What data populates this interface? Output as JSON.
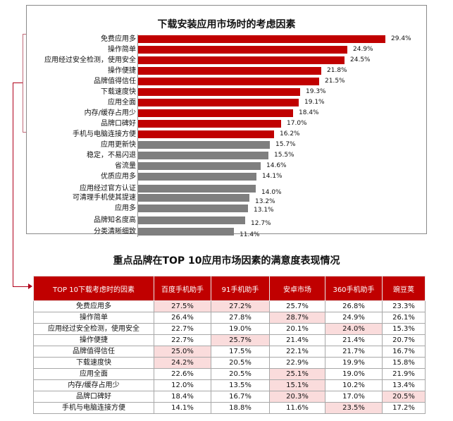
{
  "chart_data": [
    {
      "type": "bar",
      "orientation": "horizontal",
      "title": "下载安装应用市场时的考虑因素",
      "xlabel": "",
      "ylabel": "",
      "grid": false,
      "xlim": [
        0,
        30
      ],
      "categories": [
        "免费应用多",
        "操作简单",
        "应用经过安全检测，使用安全",
        "操作便捷",
        "品牌值得信任",
        "下载速度快",
        "应用全面",
        "内存/缓存占用少",
        "品牌口碑好",
        "手机与电脑连接方便",
        "应用更新快",
        "稳定，不易闪退",
        "省流量",
        "优质应用多",
        "应用经过官方认证",
        "可清理手机使其提速",
        "应用多",
        "品牌知名度高",
        "分类清晰细致"
      ],
      "values": [
        29.4,
        24.9,
        24.5,
        21.8,
        21.5,
        19.3,
        19.1,
        18.4,
        17.0,
        16.2,
        15.7,
        15.5,
        14.6,
        14.1,
        14.0,
        13.2,
        13.1,
        12.7,
        11.4
      ],
      "value_labels": [
        "29.4%",
        "24.9%",
        "24.5%",
        "21.8%",
        "21.5%",
        "19.3%",
        "19.1%",
        "18.4%",
        "17.0%",
        "16.2%",
        "15.7%",
        "15.5%",
        "14.6%",
        "14.1%",
        "14.0%",
        "13.2%",
        "13.1%",
        "12.7%",
        "11.4%"
      ],
      "highlight_top_n": 10,
      "colors": {
        "top10": "#c00000",
        "rest": "#7f7f7f"
      }
    },
    {
      "type": "table",
      "title": "重点品牌在TOP 10应用市场因素的满意度表现情况",
      "columns": [
        "TOP 10下载考虑时的因素",
        "百度手机助手",
        "91手机助手",
        "安卓市场",
        "360手机助手",
        "豌豆荚"
      ],
      "rows": [
        [
          "免费应用多",
          "27.5%",
          "27.2%",
          "25.7%",
          "26.8%",
          "23.3%"
        ],
        [
          "操作简单",
          "26.4%",
          "27.8%",
          "28.7%",
          "24.9%",
          "26.1%"
        ],
        [
          "应用经过安全检测，使用安全",
          "22.7%",
          "19.0%",
          "20.1%",
          "24.0%",
          "15.3%"
        ],
        [
          "操作便捷",
          "22.7%",
          "25.7%",
          "21.4%",
          "21.4%",
          "20.7%"
        ],
        [
          "品牌值得信任",
          "25.0%",
          "17.5%",
          "22.1%",
          "21.7%",
          "16.7%"
        ],
        [
          "下载速度快",
          "24.2%",
          "20.5%",
          "22.9%",
          "19.9%",
          "15.8%"
        ],
        [
          "应用全面",
          "22.6%",
          "20.5%",
          "25.1%",
          "19.0%",
          "21.9%"
        ],
        [
          "内存/缓存占用少",
          "12.0%",
          "13.5%",
          "15.1%",
          "10.2%",
          "13.4%"
        ],
        [
          "品牌口碑好",
          "18.4%",
          "16.7%",
          "20.3%",
          "17.0%",
          "20.5%"
        ],
        [
          "手机与电脑连接方便",
          "14.1%",
          "18.8%",
          "11.6%",
          "23.5%",
          "17.2%"
        ]
      ],
      "highlighted_cells": [
        [
          0,
          1
        ],
        [
          0,
          2
        ],
        [
          1,
          3
        ],
        [
          2,
          4
        ],
        [
          3,
          2
        ],
        [
          4,
          1
        ],
        [
          5,
          1
        ],
        [
          6,
          3
        ],
        [
          7,
          3
        ],
        [
          8,
          3
        ],
        [
          8,
          5
        ],
        [
          9,
          4
        ]
      ],
      "colors": {
        "header_bg": "#c00000",
        "header_text": "#ffffff",
        "highlight_bg": "#fadcdc"
      }
    }
  ],
  "bar_chart": {
    "title": "下载安装应用市场时的考虑因素",
    "rows": [
      {
        "label": "免费应用多",
        "value": 29.4,
        "text": "29.4%"
      },
      {
        "label": "操作简单",
        "value": 24.9,
        "text": "24.9%"
      },
      {
        "label": "应用经过安全检测，使用安全",
        "value": 24.5,
        "text": "24.5%"
      },
      {
        "label": "操作便捷",
        "value": 21.8,
        "text": "21.8%"
      },
      {
        "label": "品牌值得信任",
        "value": 21.5,
        "text": "21.5%"
      },
      {
        "label": "下载速度快",
        "value": 19.3,
        "text": "19.3%"
      },
      {
        "label": "应用全面",
        "value": 19.1,
        "text": "19.1%"
      },
      {
        "label": "内存/缓存占用少",
        "value": 18.4,
        "text": "18.4%"
      },
      {
        "label": "品牌口碑好",
        "value": 17.0,
        "text": "17.0%"
      },
      {
        "label": "手机与电脑连接方便",
        "value": 16.2,
        "text": "16.2%"
      },
      {
        "label": "应用更新快",
        "value": 15.7,
        "text": "15.7%"
      },
      {
        "label": "稳定，不易闪退",
        "value": 15.5,
        "text": "15.5%"
      },
      {
        "label": "省流量",
        "value": 14.6,
        "text": "14.6%"
      },
      {
        "label": "优质应用多",
        "value": 14.1,
        "text": "14.1%"
      },
      {
        "label": "应用经过官方认证",
        "value": 14.0,
        "text": "14.0%"
      },
      {
        "label": "可清理手机使其提速",
        "value": 13.2,
        "text": "13.2%"
      },
      {
        "label": "应用多",
        "value": 13.1,
        "text": "13.1%"
      },
      {
        "label": "品牌知名度高",
        "value": 12.7,
        "text": "12.7%"
      },
      {
        "label": "分类清晰细致",
        "value": 11.4,
        "text": "11.4%"
      }
    ]
  },
  "table": {
    "title": "重点品牌在TOP 10应用市场因素的满意度表现情况",
    "headers": [
      "TOP 10下载考虑时的因素",
      "百度手机助手",
      "91手机助手",
      "安卓市场",
      "360手机助手",
      "豌豆荚"
    ],
    "rows": [
      [
        "免费应用多",
        "27.5%",
        "27.2%",
        "25.7%",
        "26.8%",
        "23.3%"
      ],
      [
        "操作简单",
        "26.4%",
        "27.8%",
        "28.7%",
        "24.9%",
        "26.1%"
      ],
      [
        "应用经过安全检测，使用安全",
        "22.7%",
        "19.0%",
        "20.1%",
        "24.0%",
        "15.3%"
      ],
      [
        "操作便捷",
        "22.7%",
        "25.7%",
        "21.4%",
        "21.4%",
        "20.7%"
      ],
      [
        "品牌值得信任",
        "25.0%",
        "17.5%",
        "22.1%",
        "21.7%",
        "16.7%"
      ],
      [
        "下载速度快",
        "24.2%",
        "20.5%",
        "22.9%",
        "19.9%",
        "15.8%"
      ],
      [
        "应用全面",
        "22.6%",
        "20.5%",
        "25.1%",
        "19.0%",
        "21.9%"
      ],
      [
        "内存/缓存占用少",
        "12.0%",
        "13.5%",
        "15.1%",
        "10.2%",
        "13.4%"
      ],
      [
        "品牌口碑好",
        "18.4%",
        "16.7%",
        "20.3%",
        "17.0%",
        "20.5%"
      ],
      [
        "手机与电脑连接方便",
        "14.1%",
        "18.8%",
        "11.6%",
        "23.5%",
        "17.2%"
      ]
    ]
  }
}
